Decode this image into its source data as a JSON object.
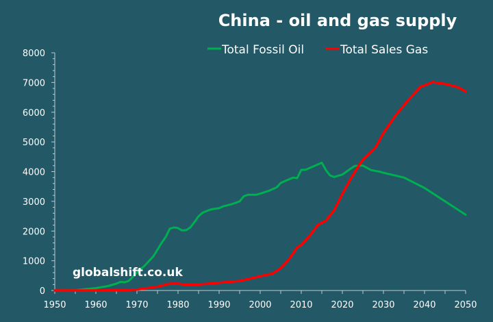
{
  "chart_data": {
    "type": "line",
    "title": "China - oil and gas supply",
    "xlabel": "",
    "ylabel": "",
    "xlim": [
      1950,
      2050
    ],
    "ylim": [
      0,
      8000
    ],
    "x_ticks": [
      "1950",
      "1960",
      "1970",
      "1980",
      "1990",
      "2000",
      "2010",
      "2020",
      "2030",
      "2040",
      "2050"
    ],
    "y_ticks": [
      "0",
      "1000",
      "2000",
      "3000",
      "4000",
      "5000",
      "6000",
      "7000",
      "8000"
    ],
    "legend_position": "top",
    "grid": false,
    "watermark": "globalshift.co.uk",
    "series": [
      {
        "name": "Total Fossil Oil",
        "color": "#00b050",
        "points": [
          [
            1950,
            0
          ],
          [
            1955,
            10
          ],
          [
            1958,
            50
          ],
          [
            1960,
            80
          ],
          [
            1963,
            150
          ],
          [
            1965,
            230
          ],
          [
            1966,
            290
          ],
          [
            1967,
            280
          ],
          [
            1968,
            320
          ],
          [
            1970,
            600
          ],
          [
            1972,
            850
          ],
          [
            1974,
            1150
          ],
          [
            1976,
            1600
          ],
          [
            1977,
            1800
          ],
          [
            1978,
            2080
          ],
          [
            1979,
            2120
          ],
          [
            1980,
            2100
          ],
          [
            1981,
            2020
          ],
          [
            1982,
            2030
          ],
          [
            1983,
            2120
          ],
          [
            1984,
            2300
          ],
          [
            1985,
            2500
          ],
          [
            1986,
            2620
          ],
          [
            1988,
            2730
          ],
          [
            1990,
            2770
          ],
          [
            1991,
            2830
          ],
          [
            1993,
            2900
          ],
          [
            1995,
            3000
          ],
          [
            1996,
            3170
          ],
          [
            1997,
            3220
          ],
          [
            1999,
            3220
          ],
          [
            2000,
            3260
          ],
          [
            2002,
            3350
          ],
          [
            2004,
            3470
          ],
          [
            2005,
            3620
          ],
          [
            2006,
            3680
          ],
          [
            2008,
            3800
          ],
          [
            2009,
            3780
          ],
          [
            2010,
            4060
          ],
          [
            2011,
            4060
          ],
          [
            2013,
            4180
          ],
          [
            2015,
            4300
          ],
          [
            2016,
            4050
          ],
          [
            2017,
            3870
          ],
          [
            2018,
            3820
          ],
          [
            2020,
            3900
          ],
          [
            2022,
            4100
          ],
          [
            2023,
            4190
          ],
          [
            2025,
            4200
          ],
          [
            2027,
            4050
          ],
          [
            2029,
            4000
          ],
          [
            2030,
            3960
          ],
          [
            2035,
            3800
          ],
          [
            2040,
            3450
          ],
          [
            2045,
            3000
          ],
          [
            2050,
            2550
          ]
        ]
      },
      {
        "name": "Total Sales Gas",
        "color": "#ff0000",
        "points": [
          [
            1950,
            0
          ],
          [
            1960,
            0
          ],
          [
            1965,
            10
          ],
          [
            1970,
            30
          ],
          [
            1975,
            130
          ],
          [
            1978,
            230
          ],
          [
            1980,
            230
          ],
          [
            1982,
            190
          ],
          [
            1985,
            200
          ],
          [
            1990,
            260
          ],
          [
            1995,
            320
          ],
          [
            1997,
            380
          ],
          [
            2000,
            480
          ],
          [
            2003,
            570
          ],
          [
            2005,
            750
          ],
          [
            2007,
            1050
          ],
          [
            2009,
            1450
          ],
          [
            2010,
            1530
          ],
          [
            2012,
            1830
          ],
          [
            2014,
            2200
          ],
          [
            2016,
            2350
          ],
          [
            2018,
            2700
          ],
          [
            2020,
            3250
          ],
          [
            2022,
            3750
          ],
          [
            2024,
            4200
          ],
          [
            2025,
            4400
          ],
          [
            2028,
            4800
          ],
          [
            2030,
            5300
          ],
          [
            2033,
            5900
          ],
          [
            2036,
            6400
          ],
          [
            2039,
            6850
          ],
          [
            2042,
            7010
          ],
          [
            2045,
            6950
          ],
          [
            2048,
            6850
          ],
          [
            2050,
            6700
          ]
        ]
      }
    ]
  }
}
